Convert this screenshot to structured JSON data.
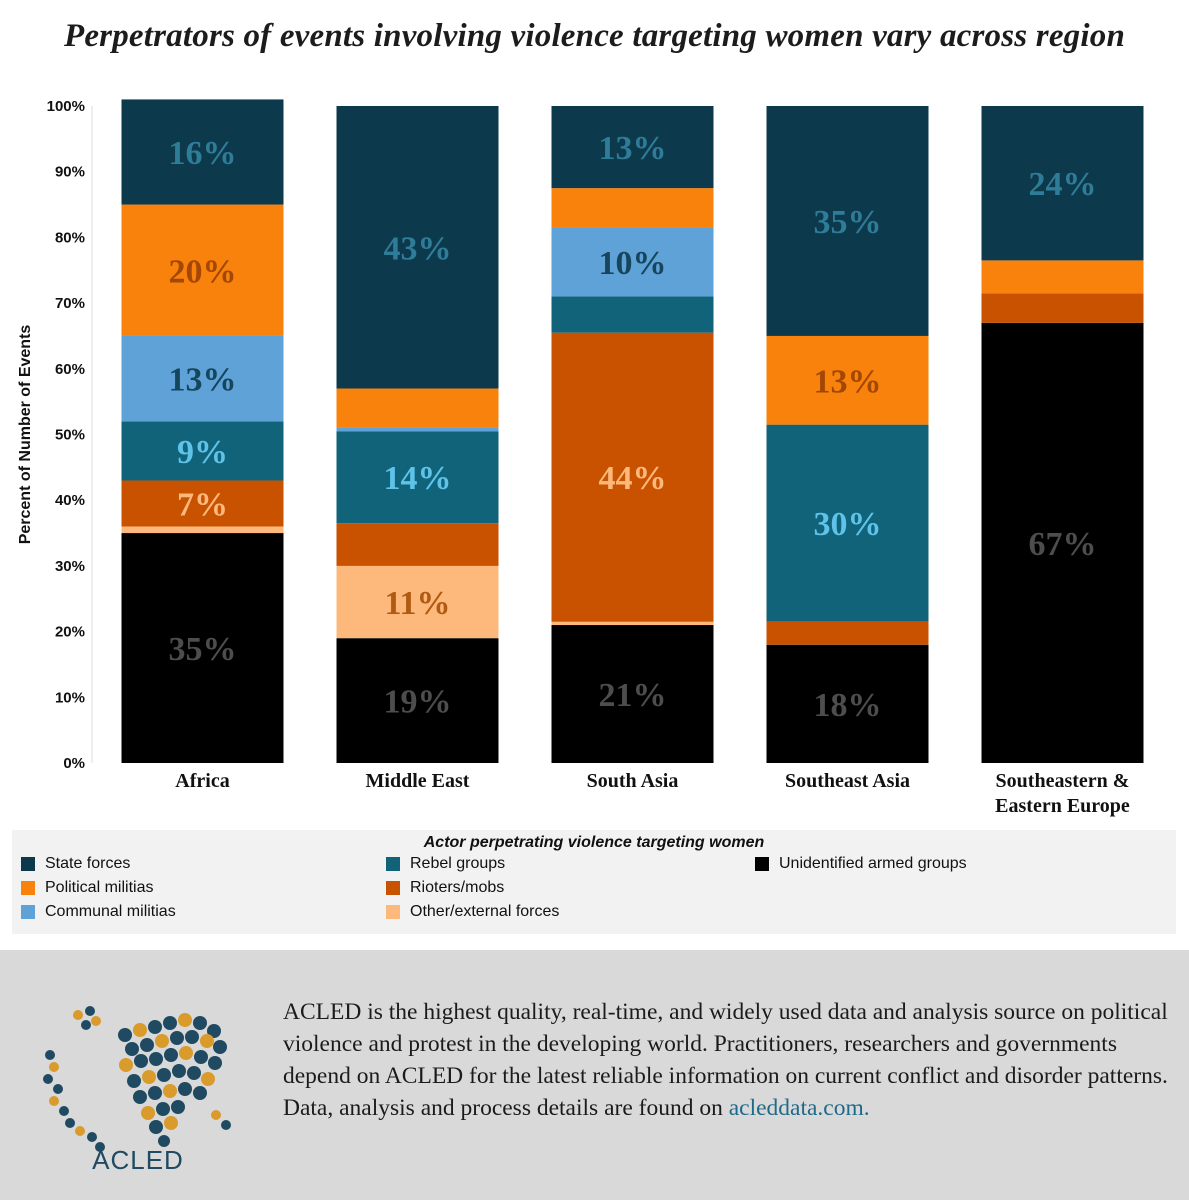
{
  "title": "Perpetrators of events involving violence targeting women vary across region",
  "colors": {
    "State forces": "#0c3a4c",
    "Rebel groups": "#106379",
    "Unidentified armed groups": "#000000",
    "Political militias": "#f9820c",
    "Rioters/mobs": "#c85200",
    "Communal militias": "#5fa2d8",
    "Other/external forces": "#fdb97c"
  },
  "chart_data": {
    "type": "bar",
    "stacked": true,
    "ylabel": "Percent of Number of Events",
    "ylim": [
      0,
      100
    ],
    "yticks": [
      "0%",
      "10%",
      "20%",
      "30%",
      "40%",
      "50%",
      "60%",
      "70%",
      "80%",
      "90%",
      "100%"
    ],
    "categories": [
      "Africa",
      "Middle East",
      "South Asia",
      "Southeast Asia",
      "Southeastern & Eastern Europe"
    ],
    "series": [
      {
        "name": "Unidentified armed groups",
        "values": [
          35,
          19,
          21,
          18,
          67
        ],
        "labels": [
          "35%",
          "19%",
          "21%",
          "18%",
          "67%"
        ],
        "label_color": "#4d4d4d"
      },
      {
        "name": "Other/external forces",
        "values": [
          1,
          11,
          0.5,
          0,
          0
        ],
        "labels": [
          "",
          "11%",
          "",
          "",
          ""
        ],
        "label_color": "#b15a14"
      },
      {
        "name": "Rioters/mobs",
        "values": [
          7,
          6.5,
          44,
          3.5,
          4.5
        ],
        "labels": [
          "7%",
          "",
          "44%",
          "",
          ""
        ],
        "label_color": "#fdb97c"
      },
      {
        "name": "Rebel groups",
        "values": [
          9,
          14,
          5.5,
          30,
          0
        ],
        "labels": [
          "9%",
          "14%",
          "",
          "30%",
          ""
        ],
        "label_color": "#5fc2e8"
      },
      {
        "name": "Communal militias",
        "values": [
          13,
          0.5,
          10.5,
          0,
          0
        ],
        "labels": [
          "13%",
          "",
          "10%",
          "",
          ""
        ],
        "label_color": "#16455c"
      },
      {
        "name": "Political militias",
        "values": [
          20,
          6,
          6,
          13.5,
          5
        ],
        "labels": [
          "20%",
          "",
          "",
          "13%",
          ""
        ],
        "label_color": "#a24704"
      },
      {
        "name": "State forces",
        "values": [
          16,
          43,
          12.5,
          35,
          23.5
        ],
        "labels": [
          "16%",
          "43%",
          "13%",
          "35%",
          "24%"
        ],
        "label_color": "#2f7c98"
      }
    ]
  },
  "legend": {
    "title": "Actor perpetrating violence targeting women",
    "items": [
      "State forces",
      "Political militias",
      "Communal militias",
      "Rebel groups",
      "Rioters/mobs",
      "Other/external forces",
      "Unidentified armed groups"
    ]
  },
  "footer": {
    "logo_text": "ACLED",
    "about_text": "ACLED is the highest quality, real-time, and widely used data and analysis source on political violence and protest in the developing world. Practitioners, researchers and governments depend on ACLED for the latest reliable information on current conflict and disorder patterns. Data, analysis and process details are found on",
    "link_text": "acleddata.com."
  }
}
